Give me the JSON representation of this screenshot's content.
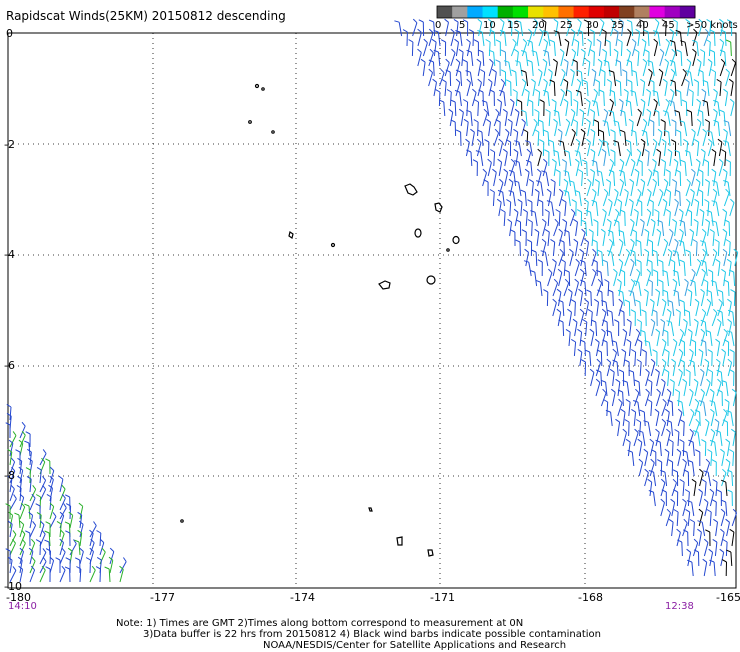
{
  "title": "Rapidscat Winds(25KM) 20150812 descending",
  "legend": {
    "labels": [
      "0",
      "5",
      "10",
      "15",
      "20",
      "25",
      "30",
      "35",
      "40",
      "45",
      ">50 knots"
    ],
    "colors": [
      "#505050",
      "#a0a0a0",
      "#00aaff",
      "#00e0ff",
      "#00b000",
      "#00e000",
      "#e8e000",
      "#ffc000",
      "#ff7000",
      "#ff2000",
      "#e00000",
      "#c00000",
      "#804020",
      "#b08060",
      "#e000e0",
      "#a000c0",
      "#6000a0"
    ]
  },
  "axes": {
    "lon_ticks": [
      "-180",
      "-177",
      "-174",
      "-171",
      "-168",
      "-165"
    ],
    "lat_ticks": [
      "0",
      "-2",
      "-4",
      "-6",
      "-8",
      "-10"
    ]
  },
  "times": {
    "left": "14:10",
    "right": "12:38"
  },
  "notes": {
    "line1": "Note: 1) Times are GMT 2)Times along bottom correspond to measurement at 0N",
    "line2": "3)Data buffer is 22 hrs from 20150812 4) Black wind barbs indicate possible contamination",
    "line3": "NOAA/NESDIS/Center for Satellite Applications and Research"
  },
  "colors": {
    "swath_cyan": "#1fc8e8",
    "swath_blue": "#2448d0",
    "swath_green": "#2ab02a",
    "contamination": "#000000"
  }
}
